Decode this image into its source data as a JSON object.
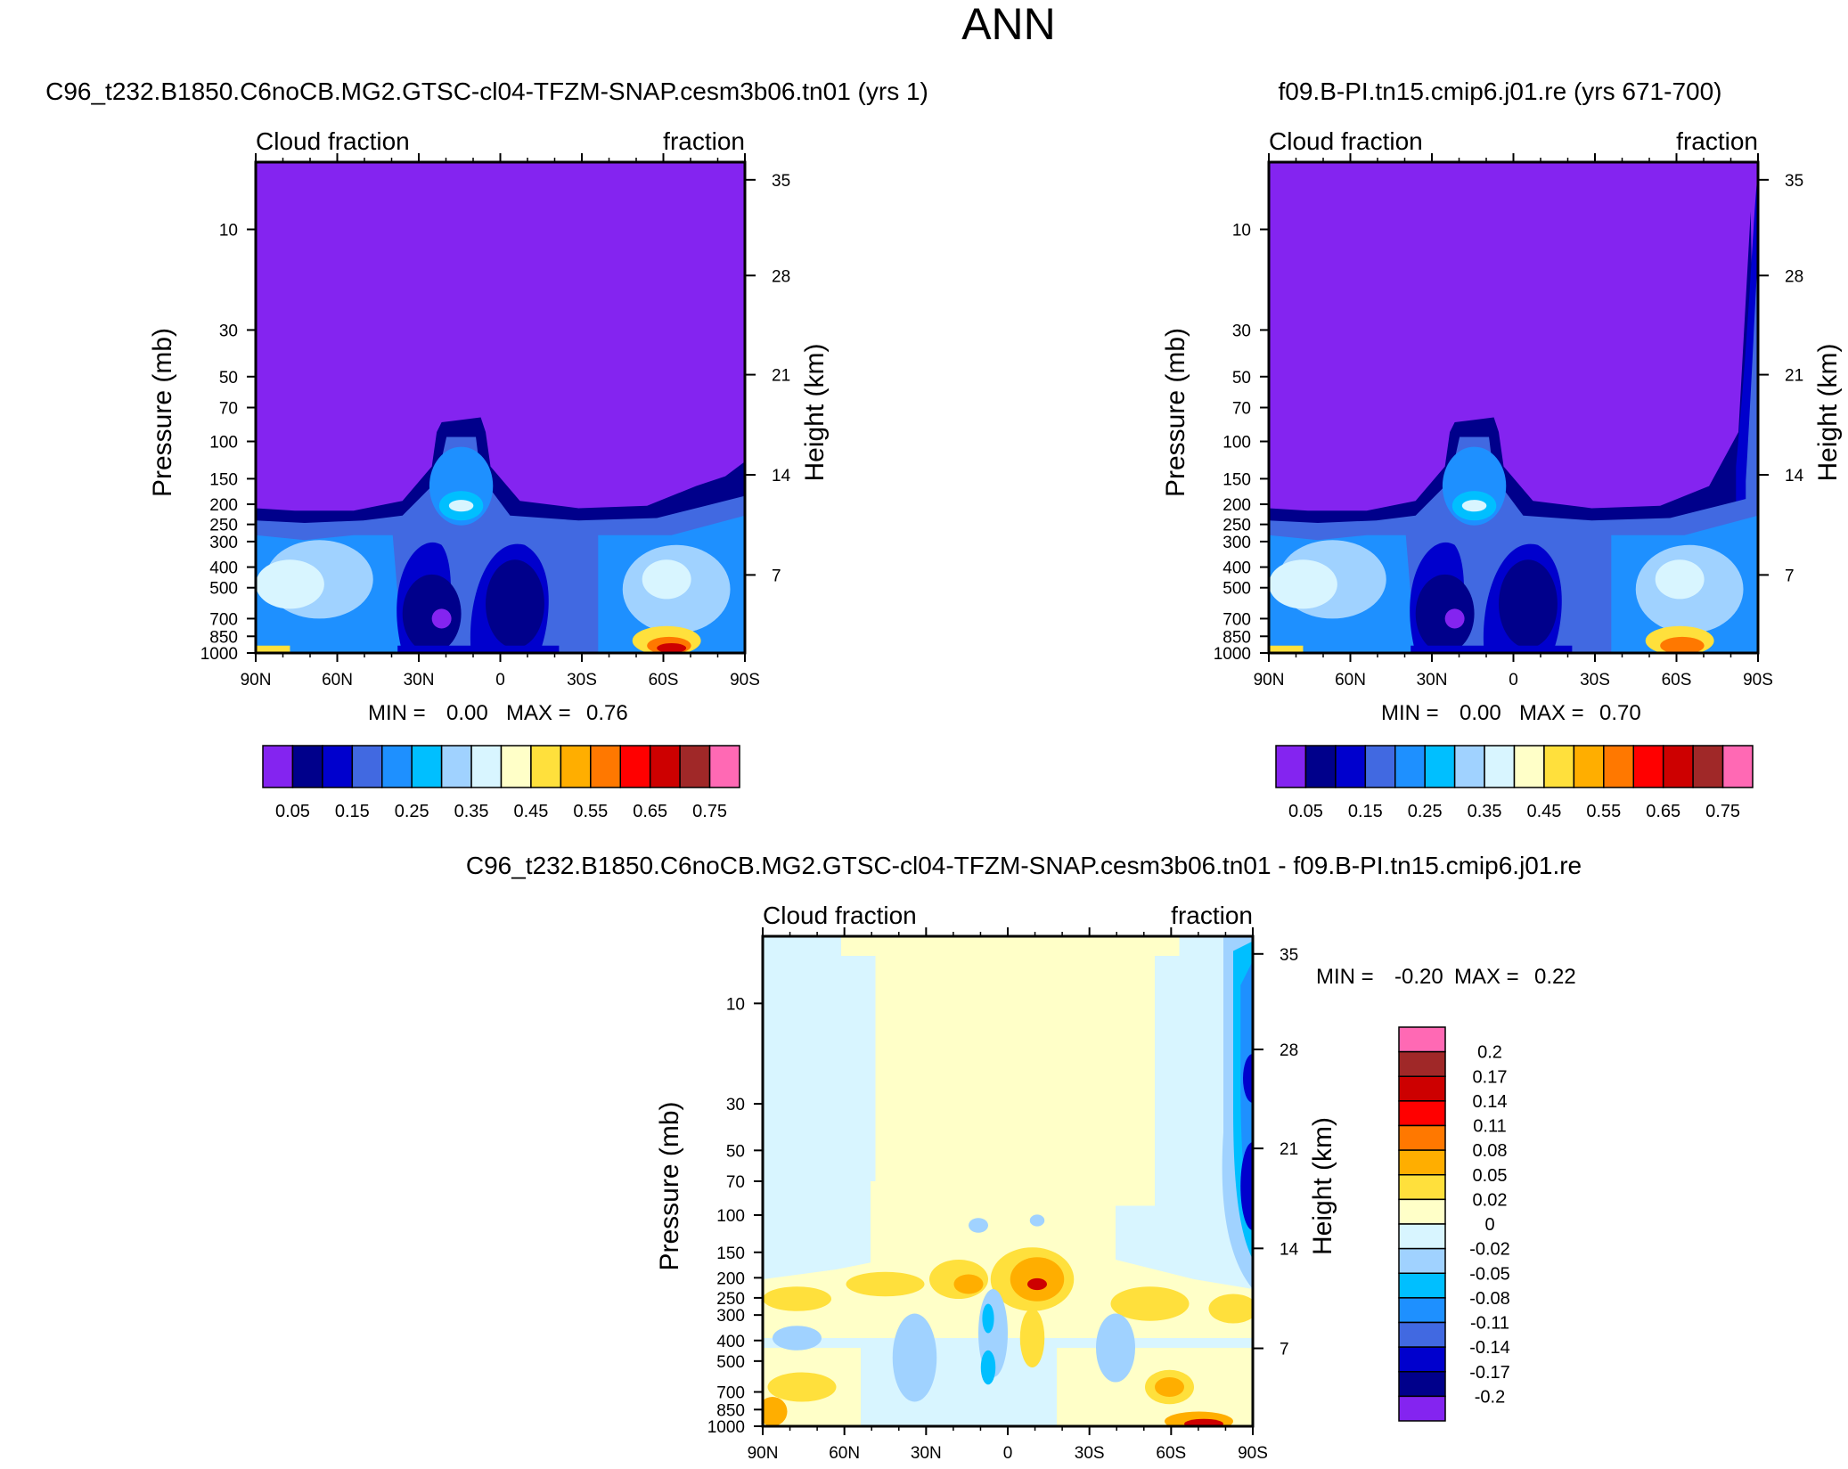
{
  "figure": {
    "title": "ANN"
  },
  "chart_data": [
    {
      "type": "heatmap",
      "title": "C96_t232.B1850.C6noCB.MG2.GTSC-cl04-TFZM-SNAP.cesm3b06.tn01 (yrs 1)",
      "top_left_label": "Cloud fraction",
      "top_right_label": "fraction",
      "xlabel": "",
      "ylabel": "Pressure (mb)",
      "ylabel_right": "Height (km)",
      "x_ticks": [
        "90N",
        "60N",
        "30N",
        "0",
        "30S",
        "60S",
        "90S"
      ],
      "y_ticks": [
        "10",
        "30",
        "50",
        "70",
        "100",
        "150",
        "200",
        "250",
        "300",
        "400",
        "500",
        "700",
        "850",
        "1000"
      ],
      "y_right_ticks": [
        "35",
        "28",
        "21",
        "14",
        "7"
      ],
      "stats": {
        "min_label": "MIN =",
        "min": "0.00",
        "max_label": "MAX =",
        "max": "0.76"
      },
      "levels": [
        "0.05",
        "0.15",
        "0.25",
        "0.35",
        "0.45",
        "0.55",
        "0.65",
        "0.75"
      ],
      "palette": [
        "#8424f0",
        "#00008b",
        "#0000cd",
        "#4169e1",
        "#1e90ff",
        "#00bfff",
        "#a0d2ff",
        "#d8f5ff",
        "#ffffc8",
        "#ffe03c",
        "#ffae00",
        "#ff7800",
        "#ff0000",
        "#cd0000",
        "#a02828",
        "#ff69b4"
      ]
    },
    {
      "type": "heatmap",
      "title": "f09.B-PI.tn15.cmip6.j01.re (yrs 671-700)",
      "top_left_label": "Cloud fraction",
      "top_right_label": "fraction",
      "xlabel": "",
      "ylabel": "Pressure (mb)",
      "ylabel_right": "Height (km)",
      "x_ticks": [
        "90N",
        "60N",
        "30N",
        "0",
        "30S",
        "60S",
        "90S"
      ],
      "y_ticks": [
        "10",
        "30",
        "50",
        "70",
        "100",
        "150",
        "200",
        "250",
        "300",
        "400",
        "500",
        "700",
        "850",
        "1000"
      ],
      "y_right_ticks": [
        "35",
        "28",
        "21",
        "14",
        "7"
      ],
      "stats": {
        "min_label": "MIN =",
        "min": "0.00",
        "max_label": "MAX =",
        "max": "0.70"
      },
      "levels": [
        "0.05",
        "0.15",
        "0.25",
        "0.35",
        "0.45",
        "0.55",
        "0.65",
        "0.75"
      ],
      "palette": [
        "#8424f0",
        "#00008b",
        "#0000cd",
        "#4169e1",
        "#1e90ff",
        "#00bfff",
        "#a0d2ff",
        "#d8f5ff",
        "#ffffc8",
        "#ffe03c",
        "#ffae00",
        "#ff7800",
        "#ff0000",
        "#cd0000",
        "#a02828",
        "#ff69b4"
      ]
    },
    {
      "type": "heatmap",
      "title": "C96_t232.B1850.C6noCB.MG2.GTSC-cl04-TFZM-SNAP.cesm3b06.tn01 - f09.B-PI.tn15.cmip6.j01.re",
      "top_left_label": "Cloud fraction",
      "top_right_label": "fraction",
      "xlabel": "",
      "ylabel": "Pressure (mb)",
      "ylabel_right": "Height (km)",
      "x_ticks": [
        "90N",
        "60N",
        "30N",
        "0",
        "30S",
        "60S",
        "90S"
      ],
      "y_ticks": [
        "10",
        "30",
        "50",
        "70",
        "100",
        "150",
        "200",
        "250",
        "300",
        "400",
        "500",
        "700",
        "850",
        "1000"
      ],
      "y_right_ticks": [
        "35",
        "28",
        "21",
        "14",
        "7"
      ],
      "stats": {
        "min_label": "MIN =",
        "min": "-0.20",
        "max_label": "MAX =",
        "max": "0.22"
      },
      "levels": [
        "0.2",
        "0.17",
        "0.14",
        "0.11",
        "0.08",
        "0.05",
        "0.02",
        "0",
        "-0.02",
        "-0.05",
        "-0.08",
        "-0.11",
        "-0.14",
        "-0.17",
        "-0.2"
      ],
      "palette": [
        "#ff69b4",
        "#a02828",
        "#cd0000",
        "#ff0000",
        "#ff7800",
        "#ffae00",
        "#ffe03c",
        "#ffffc8",
        "#d8f5ff",
        "#a0d2ff",
        "#00bfff",
        "#1e90ff",
        "#4169e1",
        "#0000cd",
        "#00008b",
        "#8424f0"
      ]
    }
  ]
}
